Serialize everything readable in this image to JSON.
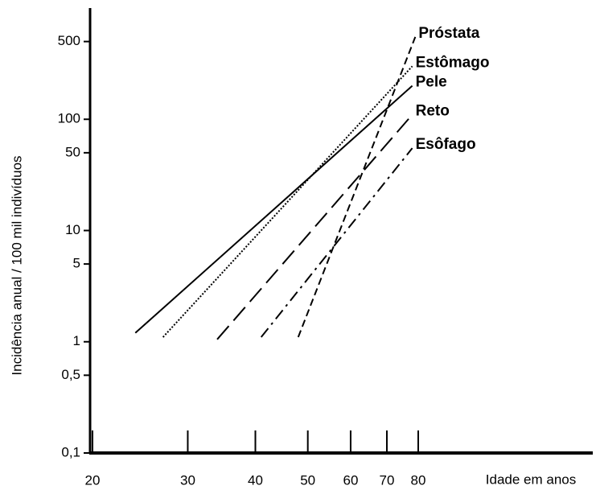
{
  "chart_data": {
    "type": "line",
    "x_label": "Idade em anos",
    "y_label": "Incidência anual / 100 mil indivíduos",
    "xscale": "log",
    "yscale": "log",
    "xlim": [
      20,
      167
    ],
    "ylim": [
      0.1,
      1000
    ],
    "xticks": [
      20,
      30,
      40,
      50,
      60,
      70,
      80
    ],
    "yticks": [
      {
        "value": 0.1,
        "label": "0,1"
      },
      {
        "value": 0.5,
        "label": "0,5"
      },
      1,
      5,
      10,
      50,
      100,
      500
    ],
    "series": [
      {
        "name": "Próstata",
        "color": "#000000",
        "dash": "dashed",
        "x": [
          48,
          79
        ],
        "values": [
          1.1,
          550
        ]
      },
      {
        "name": "Estômago",
        "color": "#000000",
        "dash": "dotted",
        "x": [
          27,
          78
        ],
        "values": [
          1.1,
          300
        ]
      },
      {
        "name": "Pele",
        "color": "#000000",
        "dash": "solid",
        "x": [
          24,
          78
        ],
        "values": [
          1.2,
          200
        ]
      },
      {
        "name": "Reto",
        "color": "#000000",
        "dash": "longdash",
        "x": [
          34,
          78
        ],
        "values": [
          1.05,
          110
        ]
      },
      {
        "name": "Esôfago",
        "color": "#000000",
        "dash": "dashdot",
        "x": [
          41,
          78
        ],
        "values": [
          1.1,
          55
        ]
      }
    ]
  }
}
